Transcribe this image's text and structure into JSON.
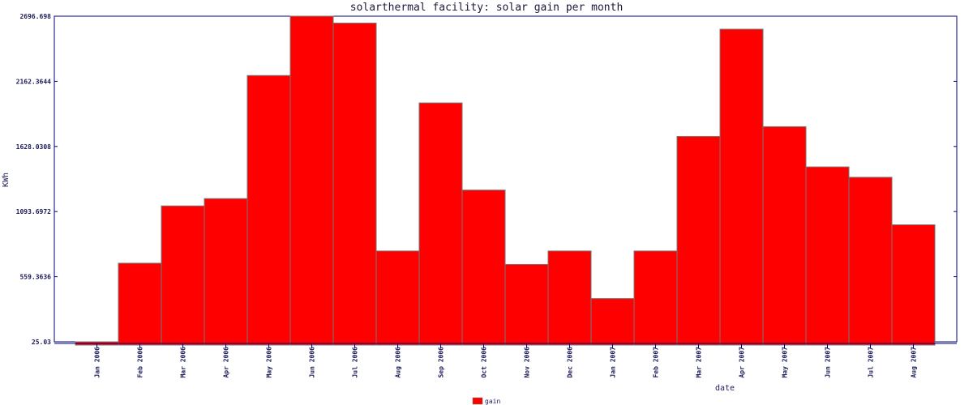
{
  "chart_data": {
    "type": "bar",
    "title": "solarthermal facility: solar gain per month",
    "xlabel": "date",
    "ylabel": "KWh",
    "ylim": [
      25.03,
      2696.698
    ],
    "yticks": [
      "25.03",
      "559.3636",
      "1093.6972",
      "1628.0308",
      "2162.3644",
      "2696.698"
    ],
    "legend_position": "bottom-center",
    "grid": false,
    "colors": {
      "bar": "#ff0000",
      "bar_edge": "#777777",
      "axis": "#00007a"
    },
    "categories": [
      "Jan 2006",
      "Feb 2006",
      "Mar 2006",
      "Apr 2006",
      "May 2006",
      "Jun 2006",
      "Jul 2006",
      "Aug 2006",
      "Sep 2006",
      "Oct 2006",
      "Nov 2006",
      "Dec 2006",
      "Jan 2007",
      "Feb 2007",
      "Mar 2007",
      "Apr 2007",
      "May 2007",
      "Jun 2007",
      "Jul 2007",
      "Aug 2007"
    ],
    "series": [
      {
        "name": "gain",
        "values": [
          25.03,
          670,
          1140,
          1200,
          2210,
          2696.698,
          2640,
          770,
          1985,
          1270,
          660,
          770,
          380,
          770,
          1710,
          2590,
          1790,
          1460,
          1375,
          985
        ]
      }
    ]
  }
}
